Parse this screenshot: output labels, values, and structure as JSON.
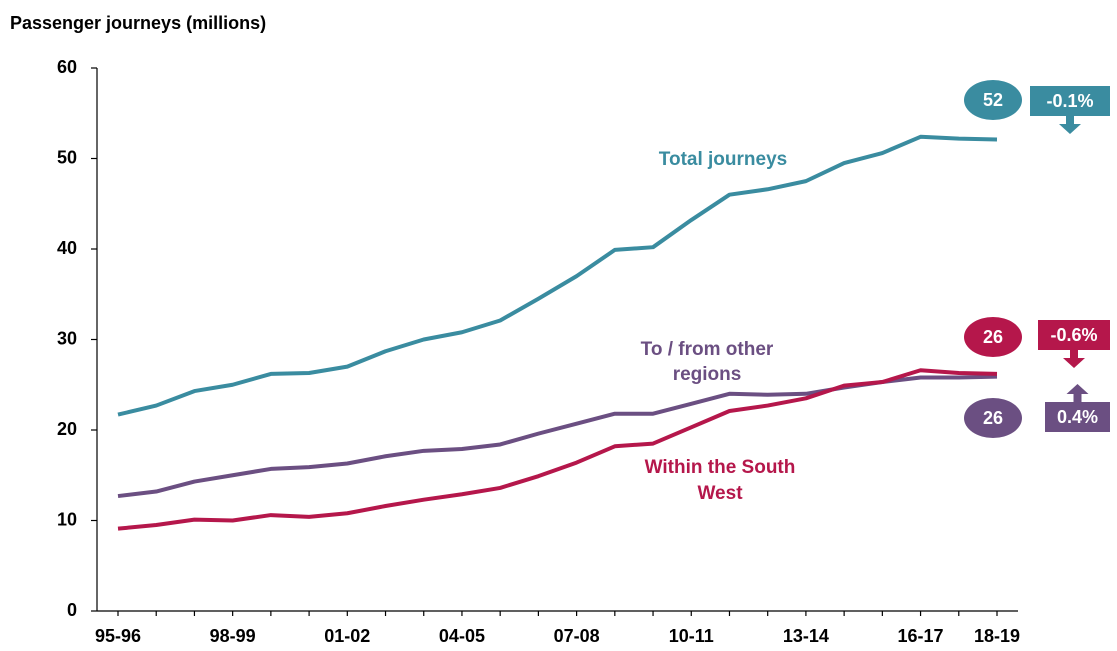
{
  "chart_data": {
    "type": "line",
    "y_axis_label": "Passenger journeys (millions)",
    "categories": [
      "95-96",
      null,
      null,
      "98-99",
      null,
      null,
      "01-02",
      null,
      null,
      "04-05",
      null,
      null,
      "07-08",
      null,
      null,
      "10-11",
      null,
      null,
      "13-14",
      null,
      null,
      "16-17",
      null,
      "18-19"
    ],
    "ylim": [
      0,
      60
    ],
    "yticks": [
      0,
      10,
      20,
      30,
      40,
      50,
      60
    ],
    "series": [
      {
        "name": [
          "Total journeys"
        ],
        "color": "#3a8ca0",
        "values": [
          21.7,
          22.7,
          24.3,
          25.0,
          26.2,
          26.3,
          27.0,
          28.7,
          30.0,
          30.8,
          32.1,
          34.5,
          37.0,
          39.9,
          40.2,
          43.2,
          46.0,
          46.6,
          47.5,
          49.5,
          50.6,
          52.4,
          52.2,
          52.1
        ],
        "end_label": "52",
        "change_label": "-0.1%",
        "change_direction": "down"
      },
      {
        "name": [
          "To / from other",
          "regions"
        ],
        "color": "#6b4f82",
        "values": [
          12.7,
          13.2,
          14.3,
          15.0,
          15.7,
          15.9,
          16.3,
          17.1,
          17.7,
          17.9,
          18.4,
          19.6,
          20.7,
          21.8,
          21.8,
          22.9,
          24.0,
          23.9,
          24.0,
          24.7,
          25.3,
          25.8,
          25.8,
          25.9
        ],
        "end_label": "26",
        "change_label": "0.4%",
        "change_direction": "up"
      },
      {
        "name": [
          "Within the South",
          "West"
        ],
        "color": "#b5174b",
        "values": [
          9.1,
          9.5,
          10.1,
          10.0,
          10.6,
          10.4,
          10.8,
          11.6,
          12.3,
          12.9,
          13.6,
          14.9,
          16.4,
          18.2,
          18.5,
          20.3,
          22.1,
          22.7,
          23.5,
          24.9,
          25.3,
          26.6,
          26.3,
          26.2
        ],
        "end_label": "26",
        "change_label": "-0.6%",
        "change_direction": "down"
      }
    ]
  }
}
